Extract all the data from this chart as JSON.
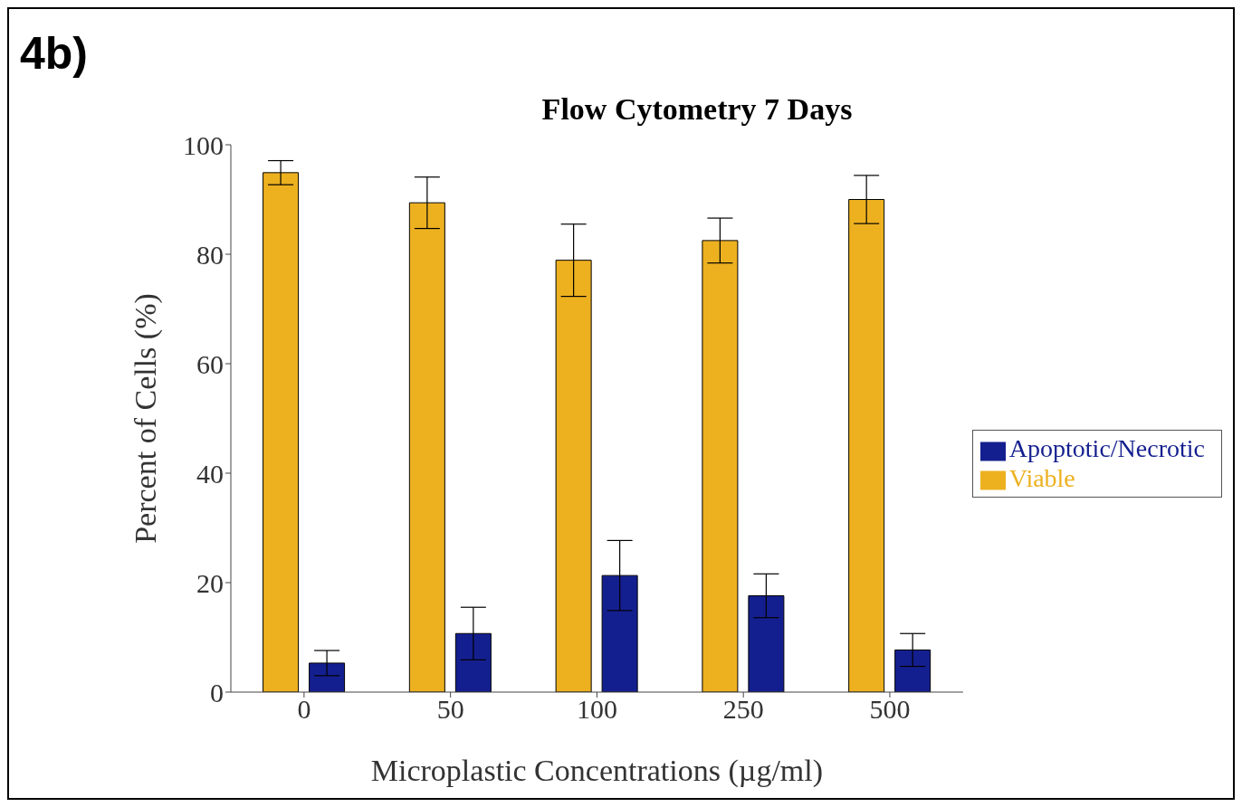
{
  "chart_data": {
    "type": "bar",
    "title": "Flow Cytometry 7 Days",
    "xlabel": "Microplastic Concentrations (µg/ml)",
    "ylabel": "Percent of Cells (%)",
    "annotations": [
      "4b)"
    ],
    "categories": [
      "0",
      "50",
      "100",
      "250",
      "500"
    ],
    "series": [
      {
        "name": "Viable",
        "color": "#edb120",
        "values": [
          94.9,
          89.4,
          78.9,
          82.5,
          90.0
        ],
        "errors": [
          2.2,
          4.7,
          6.6,
          4.1,
          4.4
        ]
      },
      {
        "name": "Apoptotic/Necrotic",
        "color": "#141f8f",
        "values": [
          5.3,
          10.7,
          21.3,
          17.6,
          7.7
        ],
        "errors": [
          2.3,
          4.8,
          6.4,
          4.0,
          3.0
        ]
      }
    ],
    "ylim": [
      0,
      100
    ],
    "yticks": [
      0,
      20,
      40,
      60,
      80,
      100
    ],
    "legend": "right"
  }
}
